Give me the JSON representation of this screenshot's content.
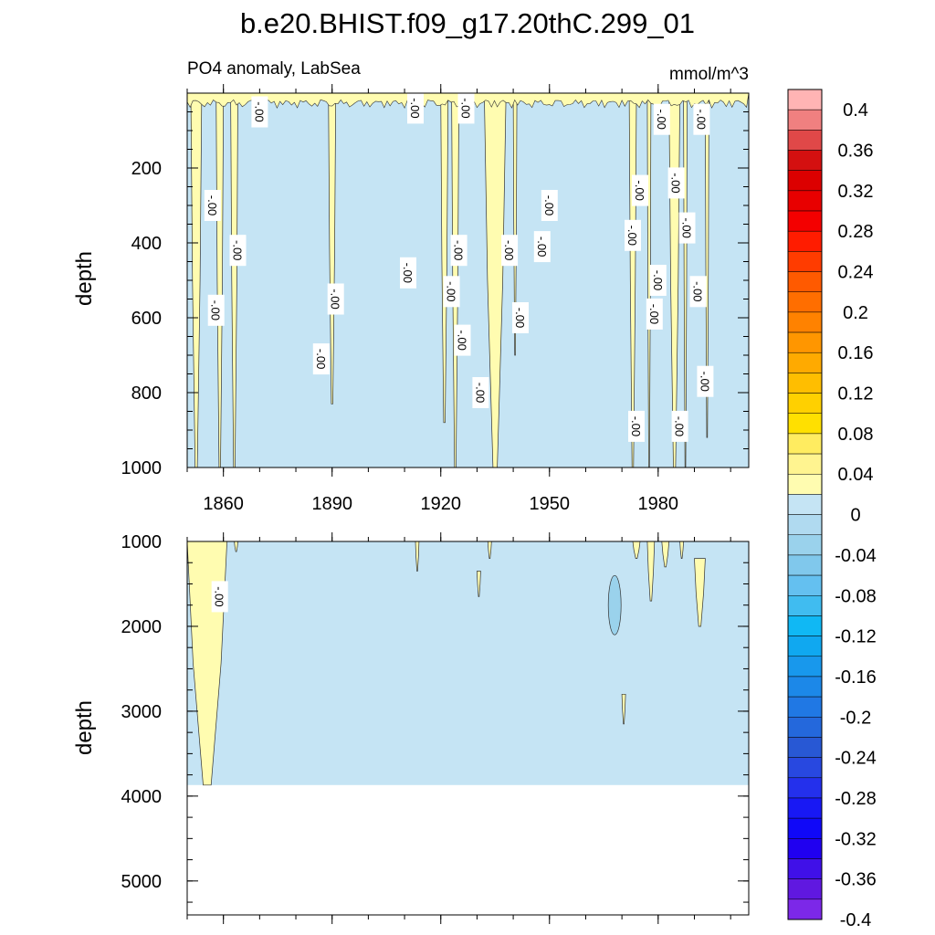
{
  "title": "b.e20.BHIST.f09_g17.20thC.299_01",
  "subtitle_left": "PO4 anomaly, LabSea",
  "subtitle_right": "mmol/m^3",
  "colors": {
    "positive_fill": "#fffcb0",
    "negative_fill": "#c5e4f4",
    "contour_line": "#333333"
  },
  "chart_data": [
    {
      "type": "heatmap",
      "panel": "upper",
      "x": "year",
      "xlim": [
        1850,
        2005
      ],
      "xticks": [
        1860,
        1890,
        1920,
        1950,
        1980
      ],
      "ylabel": "depth",
      "ylim": [
        0,
        1000
      ],
      "yticks": [
        200,
        400,
        600,
        800,
        1000
      ],
      "contour_label": "-.00",
      "positive_regions": [
        {
          "years": [
            1851,
            1854
          ],
          "depth": [
            0,
            1000
          ]
        },
        {
          "years": [
            1858,
            1860
          ],
          "depth": [
            0,
            1000
          ]
        },
        {
          "years": [
            1862,
            1864
          ],
          "depth": [
            0,
            1000
          ]
        },
        {
          "years": [
            1889,
            1891
          ],
          "depth": [
            0,
            830
          ]
        },
        {
          "years": [
            1920,
            1922
          ],
          "depth": [
            0,
            880
          ]
        },
        {
          "years": [
            1923,
            1925
          ],
          "depth": [
            0,
            1000
          ]
        },
        {
          "years": [
            1932,
            1938
          ],
          "depth": [
            0,
            1000
          ]
        },
        {
          "years": [
            1940,
            1941
          ],
          "depth": [
            0,
            700
          ]
        },
        {
          "years": [
            1972,
            1974
          ],
          "depth": [
            0,
            1000
          ]
        },
        {
          "years": [
            1977,
            1978
          ],
          "depth": [
            0,
            1000
          ]
        },
        {
          "years": [
            1983,
            1986
          ],
          "depth": [
            0,
            1000
          ]
        },
        {
          "years": [
            1987,
            1988
          ],
          "depth": [
            0,
            1000
          ]
        },
        {
          "years": [
            1993,
            1994
          ],
          "depth": [
            0,
            920
          ]
        }
      ],
      "contour_labels": [
        {
          "year": 1857,
          "depth": 300
        },
        {
          "year": 1864,
          "depth": 420
        },
        {
          "year": 1858,
          "depth": 580
        },
        {
          "year": 1870,
          "depth": 50
        },
        {
          "year": 1891,
          "depth": 550
        },
        {
          "year": 1887,
          "depth": 710
        },
        {
          "year": 1911,
          "depth": 480
        },
        {
          "year": 1913,
          "depth": 40
        },
        {
          "year": 1927,
          "depth": 40
        },
        {
          "year": 1923,
          "depth": 530
        },
        {
          "year": 1925,
          "depth": 420
        },
        {
          "year": 1926,
          "depth": 660
        },
        {
          "year": 1931,
          "depth": 800
        },
        {
          "year": 1939,
          "depth": 420
        },
        {
          "year": 1942,
          "depth": 600
        },
        {
          "year": 1950,
          "depth": 300
        },
        {
          "year": 1948,
          "depth": 410
        },
        {
          "year": 1973,
          "depth": 380
        },
        {
          "year": 1975,
          "depth": 260
        },
        {
          "year": 1974,
          "depth": 890
        },
        {
          "year": 1981,
          "depth": 70
        },
        {
          "year": 1980,
          "depth": 500
        },
        {
          "year": 1979,
          "depth": 590
        },
        {
          "year": 1985,
          "depth": 240
        },
        {
          "year": 1988,
          "depth": 360
        },
        {
          "year": 1986,
          "depth": 890
        },
        {
          "year": 1992,
          "depth": 70
        },
        {
          "year": 1991,
          "depth": 530
        },
        {
          "year": 1993,
          "depth": 770
        }
      ]
    },
    {
      "type": "heatmap",
      "panel": "lower",
      "x": "year",
      "xlim": [
        1850,
        2005
      ],
      "ylabel": "depth",
      "ylim": [
        1000,
        5400
      ],
      "yticks": [
        1000,
        2000,
        3000,
        4000,
        5000
      ],
      "data_bottom_depth": 3870,
      "contour_label": "-.00",
      "positive_regions": [
        {
          "years": [
            1850,
            1861
          ],
          "depth": [
            1000,
            3870
          ]
        },
        {
          "years": [
            1863,
            1864
          ],
          "depth": [
            1000,
            1120
          ]
        },
        {
          "years": [
            1913,
            1914
          ],
          "depth": [
            1000,
            1350
          ]
        },
        {
          "years": [
            1930,
            1931
          ],
          "depth": [
            1350,
            1650
          ]
        },
        {
          "years": [
            1933,
            1934
          ],
          "depth": [
            1000,
            1200
          ]
        },
        {
          "years": [
            1970,
            1971
          ],
          "depth": [
            2800,
            3150
          ]
        },
        {
          "years": [
            1973,
            1975
          ],
          "depth": [
            1000,
            1200
          ]
        },
        {
          "years": [
            1977,
            1979
          ],
          "depth": [
            1000,
            1700
          ]
        },
        {
          "years": [
            1981,
            1983
          ],
          "depth": [
            1000,
            1300
          ]
        },
        {
          "years": [
            1986,
            1987
          ],
          "depth": [
            1000,
            1200
          ]
        },
        {
          "years": [
            1990,
            1993
          ],
          "depth": [
            1200,
            2000
          ]
        }
      ],
      "negative_patches": [
        {
          "year": 1968,
          "depth": [
            1400,
            2100
          ]
        }
      ],
      "contour_labels": [
        {
          "year": 1859,
          "depth": 1650
        }
      ]
    }
  ],
  "colorbar": {
    "labels": [
      "0.4",
      "0.36",
      "0.32",
      "0.28",
      "0.24",
      "0.2",
      "0.16",
      "0.12",
      "0.08",
      "0.04",
      "0",
      "-0.04",
      "-0.08",
      "-0.12",
      "-0.16",
      "-0.2",
      "-0.24",
      "-0.28",
      "-0.32",
      "-0.36",
      "-0.4"
    ],
    "colors": [
      "#ffb4b4",
      "#f08080",
      "#e04848",
      "#d41010",
      "#dc0000",
      "#e80000",
      "#f40000",
      "#ff1c00",
      "#ff3c00",
      "#ff5a00",
      "#ff6e00",
      "#ff8200",
      "#ff9600",
      "#ffaa00",
      "#ffbe00",
      "#ffd000",
      "#ffe000",
      "#ffec60",
      "#fff490",
      "#fffcb0",
      "#c5e4f4",
      "#b0daf0",
      "#9ad2ec",
      "#80c8ec",
      "#64c0f0",
      "#40bcf0",
      "#10b8f4",
      "#10a8f0",
      "#1898ec",
      "#1c88e8",
      "#2078e4",
      "#2468dc",
      "#2858d4",
      "#2848e0",
      "#2430ec",
      "#1818f4",
      "#1008f8",
      "#2000f0",
      "#4010e8",
      "#6018e0",
      "#7c28e8"
    ]
  }
}
